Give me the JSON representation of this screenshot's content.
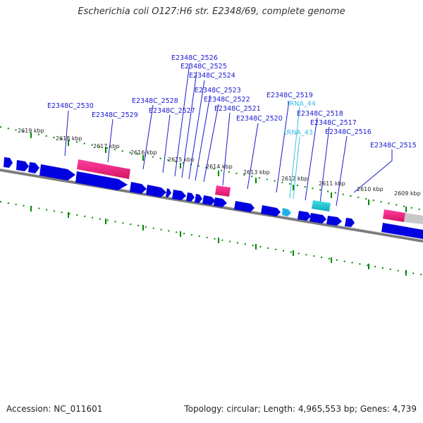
{
  "header": {
    "title": "Escherichia coli O127:H6 str. E2348/69, complete genome"
  },
  "footer": {
    "accession": "Accession: NC_011601",
    "summary": "Topology: circular; Length: 4,965,553 bp; Genes: 4,739"
  },
  "colors": {
    "cds": "#0000e0",
    "pseudogene": "#e8207a",
    "trna": "#20c8d8",
    "backbone": "#808080",
    "tick": "#008800",
    "gene_label": "#1a1ad0",
    "rna_label": "#3cbfe0"
  },
  "kbp_labels": [
    "2619 kbp",
    "2618 kbp",
    "2617 kbp",
    "2616 kbp",
    "2615 kbp",
    "2614 kbp",
    "2613 kbp",
    "2612 kbp",
    "2611 kbp",
    "2610 kbp",
    "2609 kbp"
  ],
  "gene_labels": [
    "E2348C_2530",
    "E2348C_2529",
    "E2348C_2528",
    "E2348C_2527",
    "E2348C_2526",
    "E2348C_2525",
    "E2348C_2524",
    "E2348C_2523",
    "E2348C_2522",
    "E2348C_2521",
    "E2348C_2520",
    "E2348C_2519",
    "E2348C_2518",
    "E2348C_2517",
    "E2348C_2516",
    "E2348C_2515"
  ],
  "rna_labels": [
    "tRNA_44",
    "tRNA_43"
  ]
}
